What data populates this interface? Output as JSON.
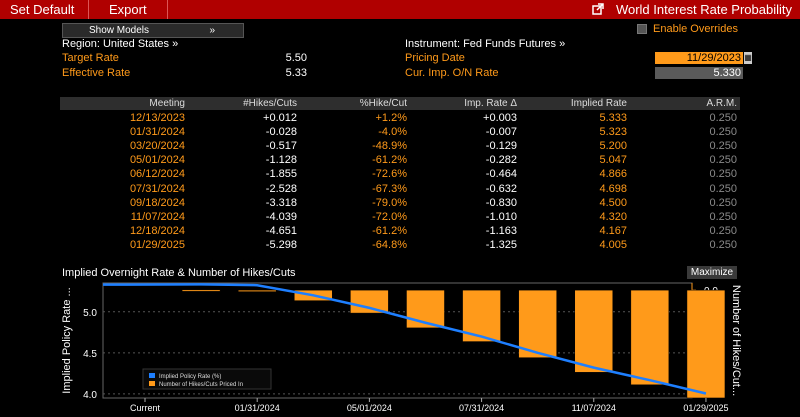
{
  "toolbar": {
    "set_default": "Set Default",
    "export": "Export",
    "title": "World Interest Rate Probability",
    "external_icon": "external-link-icon"
  },
  "controls": {
    "show_models": "Show Models",
    "show_models_arrow": "»",
    "enable_overrides": "Enable Overrides"
  },
  "info": {
    "region": "Region: United States »",
    "instrument": "Instrument: Fed Funds Futures »",
    "target_rate_label": "Target Rate",
    "target_rate_value": "5.50",
    "effective_rate_label": "Effective Rate",
    "effective_rate_value": "5.33",
    "pricing_date_label": "Pricing Date",
    "pricing_date_value": "11/29/2023",
    "cur_imp_label": "Cur. Imp. O/N Rate",
    "cur_imp_value": "5.330"
  },
  "table": {
    "headers": [
      "Meeting",
      "#Hikes/Cuts",
      "%Hike/Cut",
      "Imp. Rate Δ",
      "Implied Rate",
      "A.R.M."
    ],
    "rows": [
      [
        "12/13/2023",
        "+0.012",
        "+1.2%",
        "+0.003",
        "5.333",
        "0.250"
      ],
      [
        "01/31/2024",
        "-0.028",
        "-4.0%",
        "-0.007",
        "5.323",
        "0.250"
      ],
      [
        "03/20/2024",
        "-0.517",
        "-48.9%",
        "-0.129",
        "5.200",
        "0.250"
      ],
      [
        "05/01/2024",
        "-1.128",
        "-61.2%",
        "-0.282",
        "5.047",
        "0.250"
      ],
      [
        "06/12/2024",
        "-1.855",
        "-72.6%",
        "-0.464",
        "4.866",
        "0.250"
      ],
      [
        "07/31/2024",
        "-2.528",
        "-67.3%",
        "-0.632",
        "4.698",
        "0.250"
      ],
      [
        "09/18/2024",
        "-3.318",
        "-79.0%",
        "-0.830",
        "4.500",
        "0.250"
      ],
      [
        "11/07/2024",
        "-4.039",
        "-72.0%",
        "-1.010",
        "4.320",
        "0.250"
      ],
      [
        "12/18/2024",
        "-4.651",
        "-61.2%",
        "-1.163",
        "4.167",
        "0.250"
      ],
      [
        "01/29/2025",
        "-5.298",
        "-64.8%",
        "-1.325",
        "4.005",
        "0.250"
      ]
    ]
  },
  "chart": {
    "title": "Implied Overnight Rate & Number of Hikes/Cuts",
    "maximize": "Maximize"
  },
  "colors": {
    "accent": "#ff9a1a",
    "toolbar": "#b00000",
    "line": "#1e7fff"
  },
  "chart_data": {
    "type": "bar",
    "title": "Implied Overnight Rate & Number of Hikes/Cuts",
    "ylabel": "Implied Policy Rate ...",
    "y2label": "Number of Hikes/Cut...",
    "categories": [
      "Current",
      "12/13/2023",
      "01/31/2024",
      "03/20/2024",
      "05/01/2024",
      "06/12/2024",
      "07/31/2024",
      "09/18/2024",
      "11/07/2024",
      "12/18/2024",
      "01/29/2025"
    ],
    "x_tick_labels": [
      "Current",
      "01/31/2024",
      "05/01/2024",
      "07/31/2024",
      "11/07/2024",
      "01/29/2025"
    ],
    "series": [
      {
        "name": "Implied Policy Rate (%)",
        "type": "line",
        "axis": "left",
        "values": [
          5.33,
          5.333,
          5.323,
          5.2,
          5.047,
          4.866,
          4.698,
          4.5,
          4.32,
          4.167,
          4.005
        ]
      },
      {
        "name": "Number of Hikes/Cuts Priced In",
        "type": "bar",
        "axis": "right",
        "values": [
          null,
          0.012,
          -0.028,
          -0.517,
          -1.128,
          -1.855,
          -2.528,
          -3.318,
          -4.039,
          -4.651,
          -5.298
        ]
      }
    ],
    "ylim": [
      3.95,
      5.35
    ],
    "y_ticks": [
      "4.0",
      "4.5",
      "5.0"
    ],
    "y2lim": [
      -5.3,
      0.35
    ],
    "y2_ticks": [
      "0.0",
      "-2.0",
      "-4.0"
    ],
    "legend": "bottom-left",
    "grid": true
  }
}
